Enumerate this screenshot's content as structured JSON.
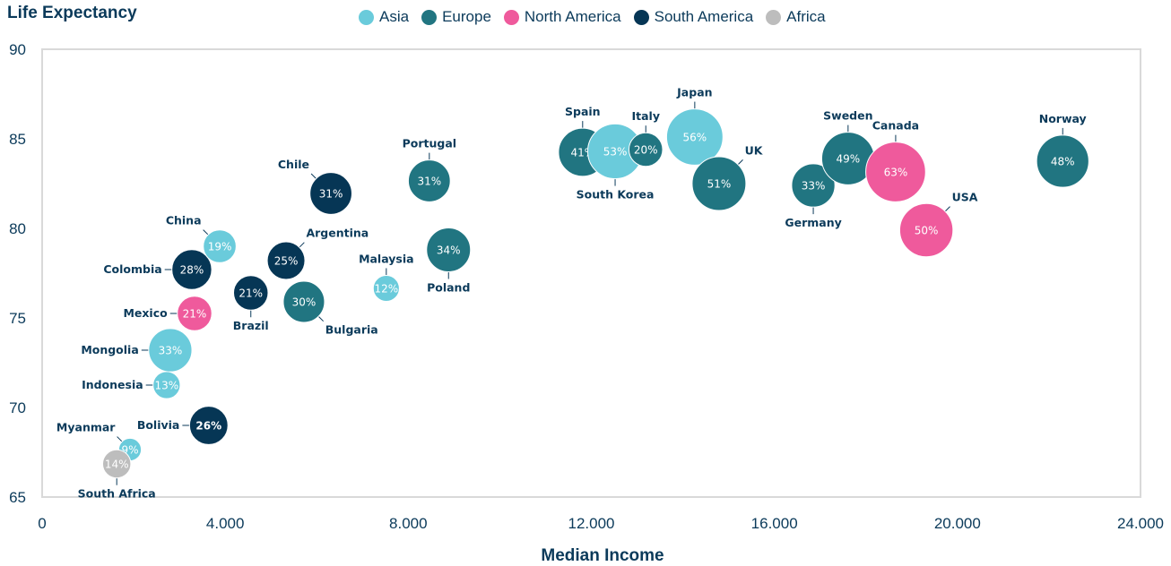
{
  "chart_data": {
    "type": "bubble",
    "ylabel": "Life Expectancy",
    "xlabel": "Median Income",
    "xlim": [
      0,
      24000
    ],
    "ylim": [
      65,
      90
    ],
    "xticks": [
      "0",
      "4.000",
      "8.000",
      "12.000",
      "16.000",
      "20.000",
      "24.000"
    ],
    "yticks": [
      "65",
      "70",
      "75",
      "80",
      "85",
      "90"
    ],
    "legend_position": "top",
    "colors": {
      "Asia": "#6acbdb",
      "Europe": "#217581",
      "North America": "#ef5a9c",
      "South America": "#063655",
      "Africa": "#bdbdbd"
    },
    "series_names": [
      "Asia",
      "Europe",
      "North America",
      "South America",
      "Africa"
    ],
    "points": [
      {
        "name": "Myanmar",
        "region": "Asia",
        "x": 1920,
        "y": 67.65,
        "size": 9,
        "label": "9%",
        "label_side": "top-left"
      },
      {
        "name": "South Africa",
        "region": "Africa",
        "x": 1630,
        "y": 66.85,
        "size": 14,
        "label": "14%",
        "label_side": "bottom"
      },
      {
        "name": "Indonesia",
        "region": "Asia",
        "x": 2720,
        "y": 71.25,
        "size": 13,
        "label": "13%",
        "label_side": "left"
      },
      {
        "name": "Mongolia",
        "region": "Asia",
        "x": 2800,
        "y": 73.2,
        "size": 33,
        "label": "33%",
        "label_side": "left"
      },
      {
        "name": "Mexico",
        "region": "North America",
        "x": 3330,
        "y": 75.25,
        "size": 21,
        "label": "21%",
        "label_side": "left"
      },
      {
        "name": "Colombia",
        "region": "South America",
        "x": 3270,
        "y": 77.7,
        "size": 28,
        "label": "28%",
        "label_side": "left"
      },
      {
        "name": "China",
        "region": "Asia",
        "x": 3880,
        "y": 79.0,
        "size": 19,
        "label": "19%",
        "label_side": "top-left"
      },
      {
        "name": "Bolivia",
        "region": "South America",
        "x": 3640,
        "y": 69.0,
        "size": 26,
        "label": "26%",
        "label_side": "left"
      },
      {
        "name": "Brazil",
        "region": "South America",
        "x": 4560,
        "y": 76.4,
        "size": 21,
        "label": "21%",
        "label_side": "bottom"
      },
      {
        "name": "Argentina",
        "region": "South America",
        "x": 5330,
        "y": 78.2,
        "size": 25,
        "label": "25%",
        "label_side": "top-right"
      },
      {
        "name": "Bulgaria",
        "region": "Europe",
        "x": 5720,
        "y": 75.9,
        "size": 30,
        "label": "30%",
        "label_side": "bottom-right"
      },
      {
        "name": "Chile",
        "region": "South America",
        "x": 6310,
        "y": 81.95,
        "size": 31,
        "label": "31%",
        "label_side": "top-left"
      },
      {
        "name": "Malaysia",
        "region": "Asia",
        "x": 7520,
        "y": 76.65,
        "size": 12,
        "label": "12%",
        "label_side": "top"
      },
      {
        "name": "Portugal",
        "region": "Europe",
        "x": 8460,
        "y": 82.65,
        "size": 31,
        "label": "31%",
        "label_side": "top"
      },
      {
        "name": "Poland",
        "region": "Europe",
        "x": 8880,
        "y": 78.8,
        "size": 34,
        "label": "34%",
        "label_side": "bottom"
      },
      {
        "name": "Spain",
        "region": "Europe",
        "x": 11810,
        "y": 84.25,
        "size": 41,
        "label": "41%",
        "label_side": "top"
      },
      {
        "name": "South Korea",
        "region": "Asia",
        "x": 12520,
        "y": 84.3,
        "size": 53,
        "label": "53%",
        "label_side": "bottom"
      },
      {
        "name": "Italy",
        "region": "Europe",
        "x": 13190,
        "y": 84.4,
        "size": 20,
        "label": "20%",
        "label_side": "top"
      },
      {
        "name": "Japan",
        "region": "Asia",
        "x": 14260,
        "y": 85.1,
        "size": 56,
        "label": "56%",
        "label_side": "top"
      },
      {
        "name": "UK",
        "region": "Europe",
        "x": 14790,
        "y": 82.5,
        "size": 51,
        "label": "51%",
        "label_side": "top-right"
      },
      {
        "name": "Germany",
        "region": "Europe",
        "x": 16850,
        "y": 82.4,
        "size": 33,
        "label": "33%",
        "label_side": "bottom"
      },
      {
        "name": "Sweden",
        "region": "Europe",
        "x": 17610,
        "y": 83.9,
        "size": 49,
        "label": "49%",
        "label_side": "top"
      },
      {
        "name": "Canada",
        "region": "North America",
        "x": 18650,
        "y": 83.15,
        "size": 63,
        "label": "63%",
        "label_side": "top"
      },
      {
        "name": "USA",
        "region": "North America",
        "x": 19320,
        "y": 79.9,
        "size": 50,
        "label": "50%",
        "label_side": "top-right"
      },
      {
        "name": "Norway",
        "region": "Europe",
        "x": 22300,
        "y": 83.75,
        "size": 48,
        "label": "48%",
        "label_side": "top"
      }
    ]
  }
}
